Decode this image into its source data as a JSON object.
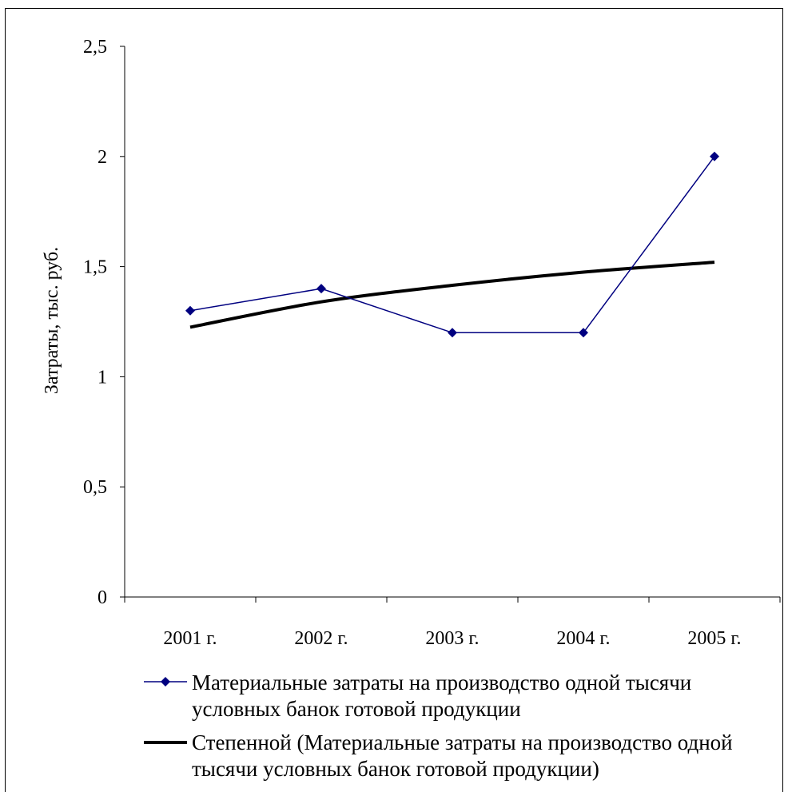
{
  "chart_data": {
    "type": "line",
    "categories": [
      "2001 г.",
      "2002 г.",
      "2003 г.",
      "2004 г.",
      "2005 г."
    ],
    "ylabel": "Затраты, тыс. руб.",
    "ylim": [
      0,
      2.5
    ],
    "y_ticks": [
      "0",
      "0,5",
      "1",
      "1,5",
      "2",
      "2,5"
    ],
    "grid": false,
    "legend_position": "bottom",
    "series": [
      {
        "name": "Материальные затраты на производство одной тысячи условных банок готовой продукции",
        "values": [
          1.3,
          1.4,
          1.2,
          1.2,
          2.0
        ],
        "color": "#000080",
        "marker": "diamond"
      }
    ],
    "trendline": {
      "name": "Степенной (Материальные затраты на производство одной тысячи условных банок готовой продукции)",
      "kind": "power",
      "values": [
        1.225,
        1.34,
        1.415,
        1.475,
        1.52
      ],
      "color": "#000000"
    }
  }
}
